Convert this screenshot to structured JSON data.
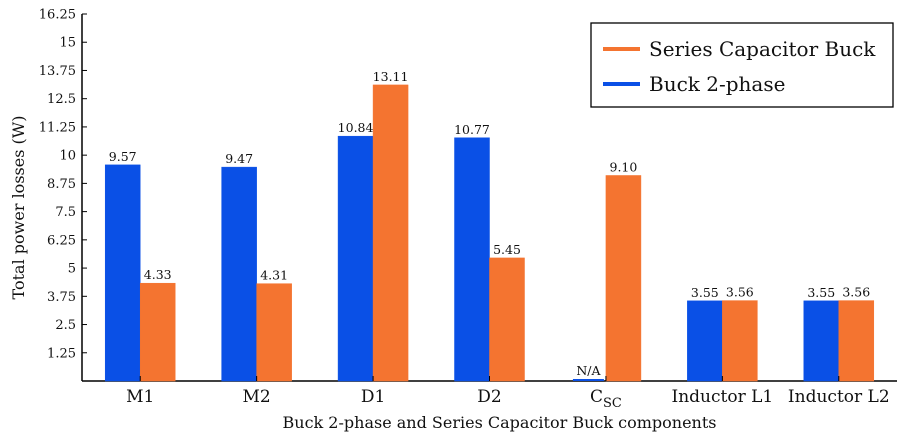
{
  "chart_data": {
    "type": "bar",
    "categories": [
      "M1",
      "M2",
      "D1",
      "D2",
      "C_SC",
      "Inductor L1",
      "Inductor L2"
    ],
    "category_display": [
      {
        "main": "M1",
        "sub": ""
      },
      {
        "main": "M2",
        "sub": ""
      },
      {
        "main": "D1",
        "sub": ""
      },
      {
        "main": "D2",
        "sub": ""
      },
      {
        "main": "C",
        "sub": "SC"
      },
      {
        "main": "Inductor L1",
        "sub": ""
      },
      {
        "main": "Inductor L2",
        "sub": ""
      }
    ],
    "series": [
      {
        "name": "Buck 2-phase",
        "color": "#0a50e6",
        "values": [
          9.57,
          9.47,
          10.84,
          10.77,
          0,
          3.55,
          3.55
        ],
        "labels": [
          "9.57",
          "9.47",
          "10.84",
          "10.77",
          "N/A",
          "3.55",
          "3.55"
        ]
      },
      {
        "name": "Series Capacitor Buck",
        "color": "#f47430",
        "values": [
          4.33,
          4.31,
          13.11,
          5.45,
          9.1,
          3.56,
          3.56
        ],
        "labels": [
          "4.33",
          "4.31",
          "13.11",
          "5.45",
          "9.10",
          "3.56",
          "3.56"
        ]
      }
    ],
    "xlabel": "Buck 2-phase and Series Capacitor Buck components",
    "ylabel": "Total power losses (W)",
    "ylim": [
      0,
      16.25
    ],
    "yticks": [
      "1.25",
      "2.5",
      "3.75",
      "5",
      "6.25",
      "7.5",
      "8.75",
      "10",
      "11.25",
      "12.5",
      "13.75",
      "15",
      "16.25"
    ],
    "legend_order": [
      "Series Capacitor Buck",
      "Buck 2-phase"
    ],
    "legend_position": "top-right",
    "grid": false
  }
}
